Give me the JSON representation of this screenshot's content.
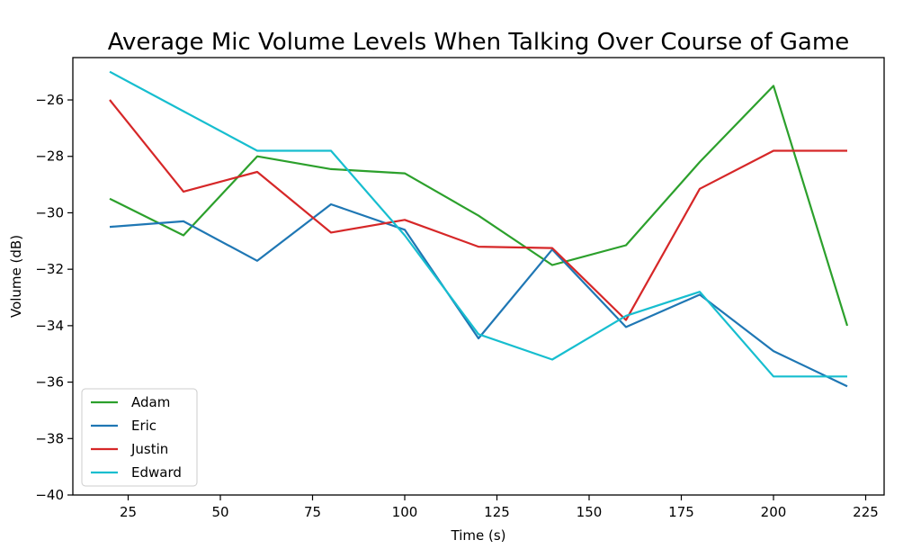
{
  "chart_data": {
    "type": "line",
    "title": "Average Mic Volume Levels When Talking Over Course of Game",
    "xlabel": "Time (s)",
    "ylabel": "Volume (dB)",
    "x": [
      20,
      40,
      60,
      80,
      100,
      120,
      140,
      160,
      180,
      200,
      220
    ],
    "xlim": [
      10,
      230
    ],
    "ylim": [
      -40,
      -24.5
    ],
    "xticks": [
      25,
      50,
      75,
      100,
      125,
      150,
      175,
      200,
      225
    ],
    "yticks": [
      -40,
      -38,
      -36,
      -34,
      -32,
      -30,
      -28,
      -26
    ],
    "xtick_labels": [
      "25",
      "50",
      "75",
      "100",
      "125",
      "150",
      "175",
      "200",
      "225"
    ],
    "ytick_labels": [
      "−40",
      "−38",
      "−36",
      "−34",
      "−32",
      "−30",
      "−28",
      "−26"
    ],
    "grid": false,
    "legend_position": "lower-left",
    "series": [
      {
        "name": "Adam",
        "color": "#2ca02c",
        "values": [
          -29.5,
          -30.8,
          -28.0,
          -28.45,
          -28.6,
          -30.1,
          -31.85,
          -31.15,
          -28.2,
          -25.5,
          -34.0
        ]
      },
      {
        "name": "Eric",
        "color": "#1f77b4",
        "values": [
          -30.5,
          -30.3,
          -31.7,
          -29.7,
          -30.6,
          -34.45,
          -31.3,
          -34.05,
          -32.9,
          -34.9,
          -36.15
        ]
      },
      {
        "name": "Justin",
        "color": "#d62728",
        "values": [
          -26.0,
          -29.25,
          -28.55,
          -30.7,
          -30.25,
          -31.2,
          -31.25,
          -33.8,
          -29.15,
          -27.8,
          -27.8
        ]
      },
      {
        "name": "Edward",
        "color": "#17becf",
        "values": [
          -25.0,
          -26.4,
          -27.8,
          -27.8,
          -30.8,
          -34.3,
          -35.2,
          -33.65,
          -32.8,
          -35.8,
          -35.8
        ]
      }
    ]
  }
}
